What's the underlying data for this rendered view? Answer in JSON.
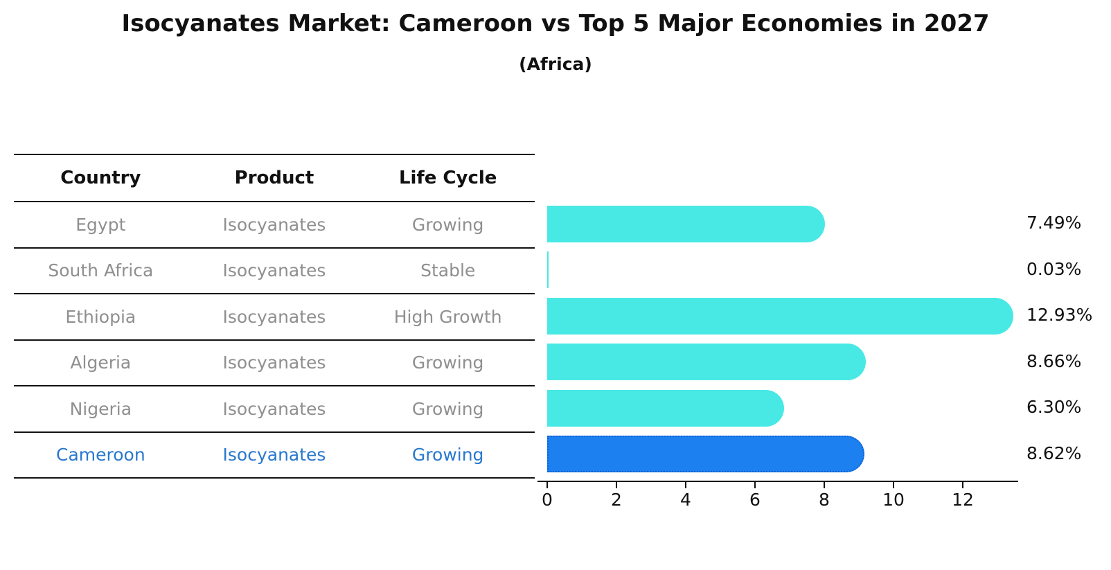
{
  "title": "Isocyanates Market: Cameroon vs Top 5 Major Economies in 2027",
  "subtitle": "(Africa)",
  "table": {
    "headers": [
      "Country",
      "Product",
      "Life Cycle"
    ],
    "rows": [
      {
        "country": "Egypt",
        "product": "Isocyanates",
        "life_cycle": "Growing",
        "highlighted": false
      },
      {
        "country": "South Africa",
        "product": "Isocyanates",
        "life_cycle": "Stable",
        "highlighted": false
      },
      {
        "country": "Ethiopia",
        "product": "Isocyanates",
        "life_cycle": "High Growth",
        "highlighted": false
      },
      {
        "country": "Algeria",
        "product": "Isocyanates",
        "life_cycle": "Growing",
        "highlighted": false
      },
      {
        "country": "Nigeria",
        "product": "Isocyanates",
        "life_cycle": "Growing",
        "highlighted": false
      },
      {
        "country": "Cameroon",
        "product": "Isocyanates",
        "life_cycle": "Growing",
        "highlighted": true
      }
    ]
  },
  "chart_data": {
    "type": "bar",
    "orientation": "horizontal",
    "title": "Isocyanates Market: Cameroon vs Top 5 Major Economies in 2027",
    "subtitle": "(Africa)",
    "categories": [
      "Egypt",
      "South Africa",
      "Ethiopia",
      "Algeria",
      "Nigeria",
      "Cameroon"
    ],
    "values": [
      7.49,
      0.03,
      12.93,
      8.66,
      6.3,
      8.62
    ],
    "value_labels": [
      "7.49%",
      "0.03%",
      "12.93%",
      "8.66%",
      "6.30%",
      "8.62%"
    ],
    "xticks": [
      0,
      2,
      4,
      6,
      8,
      10,
      12
    ],
    "xlim": [
      0,
      13.6
    ],
    "grid": false,
    "legend_position": "none",
    "highlight_category": "Cameroon",
    "highlight_index": 5,
    "colors": {
      "bar": "#48e9e4",
      "highlight_bar": "#1c80f0",
      "highlight_border": "#0f5fd0",
      "highlight_text": "#2878ce",
      "row_text": "#8f8f8f",
      "text": "#111111",
      "axis": "#111111"
    }
  }
}
